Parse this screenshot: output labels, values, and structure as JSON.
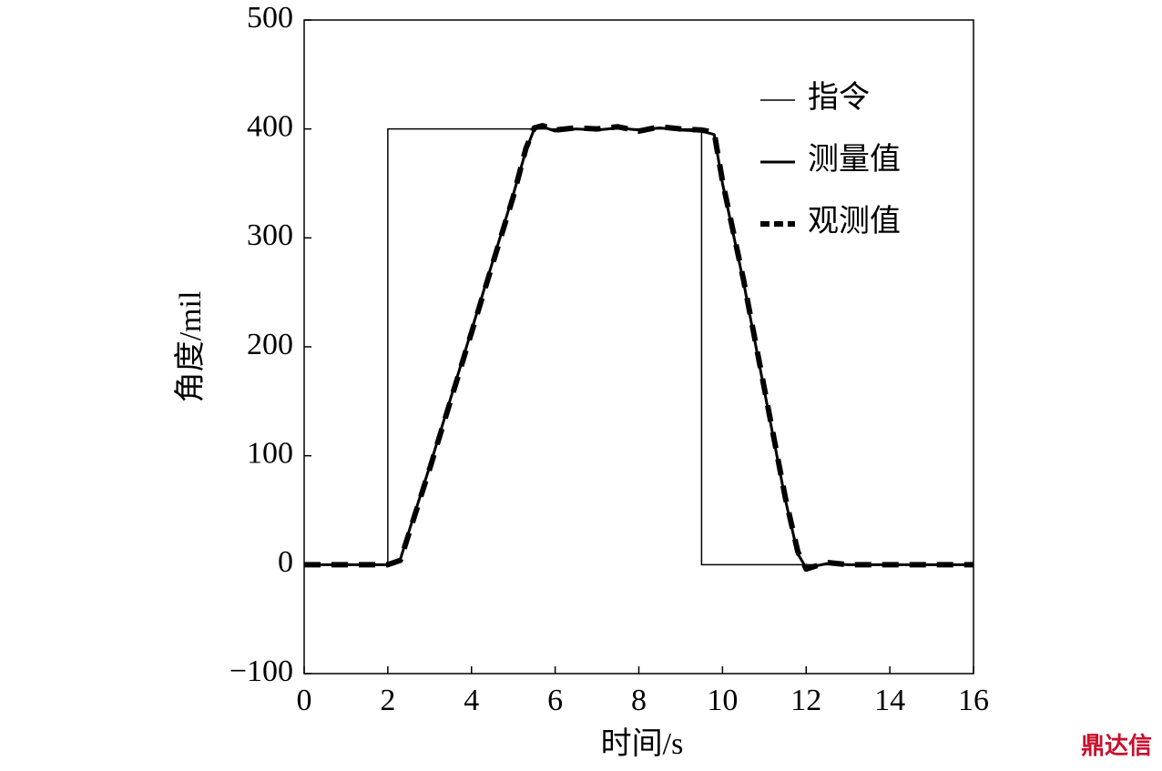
{
  "chart_data": {
    "type": "line",
    "xlabel": "时间/s",
    "ylabel": "角度/mil",
    "watermark": "鼎达信",
    "x": [
      0,
      2,
      2,
      2.3,
      2.5,
      3,
      4,
      5,
      5.3,
      5.5,
      5.7,
      6,
      6.5,
      7,
      7.5,
      8,
      8.5,
      9,
      9.5,
      9.5,
      9.8,
      10,
      10.5,
      11,
      11.5,
      11.8,
      12,
      12.5,
      13,
      14,
      15,
      16
    ],
    "series": [
      {
        "name": "指令",
        "color": "#000000",
        "linestyle": "solid",
        "linewidth": 1.5,
        "values": [
          0,
          0,
          400,
          400,
          400,
          400,
          400,
          400,
          400,
          400,
          400,
          400,
          400,
          400,
          400,
          400,
          400,
          400,
          400,
          0,
          0,
          0,
          0,
          0,
          0,
          0,
          0,
          0,
          0,
          0,
          0,
          0
        ]
      },
      {
        "name": "测量值",
        "color": "#000000",
        "linestyle": "solid",
        "linewidth": 3,
        "values": [
          0,
          0,
          0,
          5,
          30,
          90,
          215,
          340,
          380,
          400,
          402,
          398,
          400,
          399,
          401,
          399,
          401,
          399,
          398,
          398,
          395,
          350,
          260,
          160,
          60,
          10,
          -3,
          1,
          0,
          0,
          0,
          0
        ]
      },
      {
        "name": "观测值",
        "color": "#000000",
        "linestyle": "dashed",
        "linewidth": 6,
        "values": [
          0,
          0,
          0,
          4,
          28,
          88,
          213,
          338,
          382,
          401,
          403,
          399,
          401,
          400,
          402,
          398,
          402,
          400,
          399,
          399,
          397,
          352,
          262,
          162,
          62,
          12,
          -4,
          2,
          0,
          0,
          0,
          0
        ]
      }
    ],
    "xlim": [
      0,
      16
    ],
    "xticks": [
      0,
      2,
      4,
      6,
      8,
      10,
      12,
      14,
      16
    ],
    "ylim": [
      -100,
      500
    ],
    "yticks": [
      {
        "value": -100,
        "label": "−100"
      },
      0,
      100,
      200,
      300,
      400,
      500
    ],
    "grid": false,
    "legend": "upper right"
  }
}
